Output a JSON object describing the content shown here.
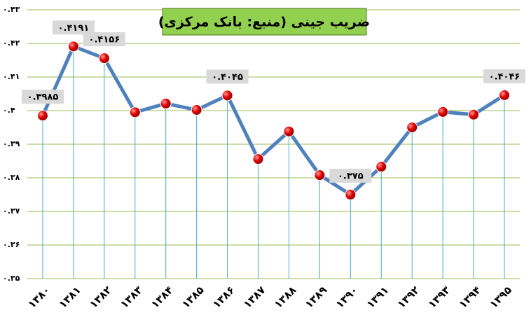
{
  "chart_data": {
    "type": "line",
    "title": "ضریب جینی (منبع: بانک مرکزی)",
    "categories": [
      "۱۳۸۰",
      "۱۳۸۱",
      "۱۳۸۲",
      "۱۳۸۳",
      "۱۳۸۴",
      "۱۳۸۵",
      "۱۳۸۶",
      "۱۳۸۷",
      "۱۳۸۸",
      "۱۳۸۹",
      "۱۳۹۰",
      "۱۳۹۱",
      "۱۳۹۲",
      "۱۳۹۳",
      "۱۳۹۴",
      "۱۳۹۵"
    ],
    "values": [
      0.3985,
      0.4191,
      0.4156,
      0.3995,
      0.4021,
      0.4002,
      0.4045,
      0.3856,
      0.3938,
      0.3808,
      0.375,
      0.3833,
      0.395,
      0.3996,
      0.3988,
      0.4046
    ],
    "value_labels": [
      "۰.۳۹۸۵",
      "۰.۴۱۹۱",
      "۰.۴۱۵۶",
      null,
      null,
      null,
      "۰.۴۰۴۵",
      null,
      null,
      null,
      "۰.۳۷۵",
      null,
      null,
      null,
      null,
      "۰.۴۰۴۶"
    ],
    "color": "#4f81bd",
    "marker_color": "#e00000",
    "drop_line_color": "#4bacc6",
    "grid_color": "#9bbb59",
    "title_background": "#92d050",
    "ylim": [
      0.35,
      0.43
    ],
    "yticks": [
      {
        "value": 0.35,
        "label": "۰.۳۵"
      },
      {
        "value": 0.36,
        "label": "۰.۳۶"
      },
      {
        "value": 0.37,
        "label": "۰.۳۷"
      },
      {
        "value": 0.38,
        "label": "۰.۳۸"
      },
      {
        "value": 0.39,
        "label": "۰.۳۹"
      },
      {
        "value": 0.4,
        "label": "۰.۴"
      },
      {
        "value": 0.41,
        "label": "۰.۴۱"
      },
      {
        "value": 0.42,
        "label": "۰.۴۲"
      },
      {
        "value": 0.43,
        "label": "۰.۴۳"
      }
    ],
    "grid": true
  }
}
